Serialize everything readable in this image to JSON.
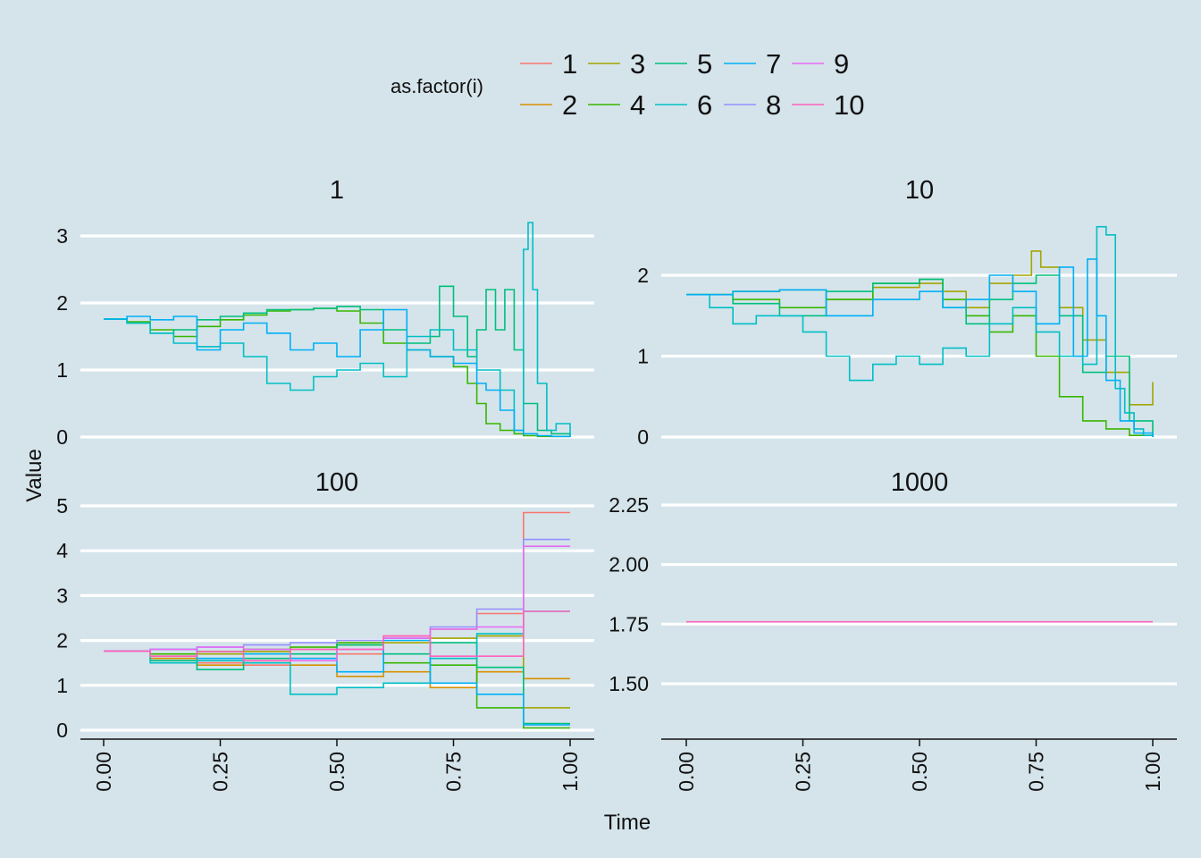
{
  "legend": {
    "title": "as.factor(i)",
    "entries": [
      {
        "label": "1",
        "color": "#F8766D"
      },
      {
        "label": "2",
        "color": "#D89000"
      },
      {
        "label": "3",
        "color": "#A3A500"
      },
      {
        "label": "4",
        "color": "#39B600"
      },
      {
        "label": "5",
        "color": "#00BF7D"
      },
      {
        "label": "6",
        "color": "#00BFC4"
      },
      {
        "label": "7",
        "color": "#00B0F6"
      },
      {
        "label": "8",
        "color": "#9590FF"
      },
      {
        "label": "9",
        "color": "#E76BF3"
      },
      {
        "label": "10",
        "color": "#FF62BC"
      }
    ]
  },
  "axes": {
    "xlabel": "Time",
    "ylabel": "Value"
  },
  "chart_data": [
    {
      "type": "line",
      "panel": "1",
      "xlim": [
        0,
        1
      ],
      "ylim": [
        0,
        3
      ],
      "xticks": [
        "0.00",
        "0.25",
        "0.50",
        "0.75",
        "1.00"
      ],
      "yticks": [
        "0",
        "1",
        "2",
        "3"
      ],
      "series": [
        {
          "name": "4",
          "color": "#39B600",
          "x": [
            0,
            0.05,
            0.1,
            0.15,
            0.2,
            0.25,
            0.3,
            0.35,
            0.4,
            0.45,
            0.5,
            0.55,
            0.6,
            0.65,
            0.7,
            0.75,
            0.78,
            0.8,
            0.82,
            0.85,
            0.88,
            0.9,
            0.93,
            0.96,
            1.0
          ],
          "y": [
            1.76,
            1.72,
            1.6,
            1.5,
            1.65,
            1.75,
            1.82,
            1.88,
            1.9,
            1.92,
            1.88,
            1.7,
            1.4,
            1.3,
            1.2,
            1.05,
            0.8,
            0.5,
            0.2,
            0.1,
            0.05,
            0.02,
            0.01,
            0.01,
            0
          ]
        },
        {
          "name": "5",
          "color": "#00BF7D",
          "x": [
            0,
            0.05,
            0.1,
            0.15,
            0.2,
            0.25,
            0.3,
            0.35,
            0.4,
            0.45,
            0.5,
            0.55,
            0.6,
            0.65,
            0.7,
            0.72,
            0.75,
            0.78,
            0.8,
            0.82,
            0.84,
            0.86,
            0.88,
            0.9,
            0.93,
            0.96,
            1.0
          ],
          "y": [
            1.76,
            1.7,
            1.55,
            1.6,
            1.75,
            1.8,
            1.85,
            1.9,
            1.9,
            1.92,
            1.95,
            1.9,
            1.6,
            1.4,
            1.5,
            2.25,
            1.8,
            1.2,
            1.6,
            2.2,
            1.6,
            2.2,
            1.3,
            0.5,
            0.1,
            0.05,
            0
          ]
        },
        {
          "name": "6",
          "color": "#00BFC4",
          "x": [
            0,
            0.05,
            0.1,
            0.15,
            0.2,
            0.25,
            0.3,
            0.35,
            0.4,
            0.45,
            0.5,
            0.55,
            0.6,
            0.65,
            0.7,
            0.75,
            0.8,
            0.85,
            0.88,
            0.9,
            0.91,
            0.92,
            0.93,
            0.95,
            0.97,
            1.0
          ],
          "y": [
            1.76,
            1.7,
            1.55,
            1.4,
            1.35,
            1.4,
            1.2,
            0.8,
            0.7,
            0.9,
            1.0,
            1.1,
            0.9,
            1.5,
            1.6,
            1.3,
            1.0,
            0.7,
            0.1,
            2.8,
            3.2,
            2.2,
            0.8,
            0.1,
            0.2,
            0
          ]
        },
        {
          "name": "7",
          "color": "#00B0F6",
          "x": [
            0,
            0.05,
            0.1,
            0.15,
            0.2,
            0.25,
            0.3,
            0.35,
            0.4,
            0.45,
            0.5,
            0.55,
            0.6,
            0.65,
            0.7,
            0.75,
            0.8,
            0.82,
            0.85,
            0.88,
            0.9,
            0.93,
            0.96,
            1.0
          ],
          "y": [
            1.76,
            1.8,
            1.75,
            1.8,
            1.3,
            1.6,
            1.7,
            1.55,
            1.3,
            1.4,
            1.2,
            1.6,
            1.9,
            1.3,
            1.2,
            1.1,
            0.8,
            0.7,
            0.4,
            0.1,
            0.05,
            0.02,
            0.01,
            0
          ]
        }
      ]
    },
    {
      "type": "line",
      "panel": "10",
      "xlim": [
        0,
        1
      ],
      "ylim": [
        0,
        2
      ],
      "xticks": [
        "0.00",
        "0.25",
        "0.50",
        "0.75",
        "1.00"
      ],
      "yticks": [
        "0",
        "1",
        "2"
      ],
      "series": [
        {
          "name": "3",
          "color": "#A3A500",
          "x": [
            0,
            0.1,
            0.2,
            0.3,
            0.4,
            0.5,
            0.55,
            0.6,
            0.65,
            0.7,
            0.74,
            0.76,
            0.8,
            0.85,
            0.9,
            0.95,
            1.0
          ],
          "y": [
            1.76,
            1.8,
            1.82,
            1.7,
            1.85,
            1.9,
            1.8,
            1.6,
            1.9,
            2.0,
            2.3,
            2.1,
            1.6,
            1.2,
            0.8,
            0.4,
            0.68
          ]
        },
        {
          "name": "4",
          "color": "#39B600",
          "x": [
            0,
            0.1,
            0.2,
            0.3,
            0.4,
            0.5,
            0.55,
            0.6,
            0.65,
            0.7,
            0.75,
            0.8,
            0.85,
            0.9,
            0.95,
            1.0
          ],
          "y": [
            1.76,
            1.7,
            1.6,
            1.7,
            1.9,
            1.95,
            1.7,
            1.5,
            1.3,
            1.5,
            1.0,
            0.5,
            0.2,
            0.1,
            0.02,
            0
          ]
        },
        {
          "name": "5",
          "color": "#00BF7D",
          "x": [
            0,
            0.1,
            0.2,
            0.3,
            0.4,
            0.5,
            0.55,
            0.6,
            0.65,
            0.7,
            0.75,
            0.8,
            0.85,
            0.9,
            0.95,
            1.0
          ],
          "y": [
            1.76,
            1.65,
            1.5,
            1.8,
            1.9,
            1.95,
            1.6,
            1.4,
            1.7,
            1.9,
            2.0,
            1.5,
            0.8,
            1.0,
            0.2,
            0
          ]
        },
        {
          "name": "6",
          "color": "#00BFC4",
          "x": [
            0,
            0.05,
            0.1,
            0.15,
            0.2,
            0.25,
            0.3,
            0.35,
            0.4,
            0.45,
            0.5,
            0.55,
            0.6,
            0.65,
            0.7,
            0.75,
            0.8,
            0.85,
            0.88,
            0.9,
            0.92,
            0.94,
            0.96,
            0.98,
            1.0
          ],
          "y": [
            1.76,
            1.6,
            1.4,
            1.5,
            1.5,
            1.3,
            1.0,
            0.7,
            0.9,
            1.0,
            0.9,
            1.1,
            1.0,
            1.4,
            1.6,
            1.3,
            1.0,
            0.9,
            2.6,
            2.5,
            0.6,
            0.3,
            0.1,
            0.02,
            0
          ]
        },
        {
          "name": "7",
          "color": "#00B0F6",
          "x": [
            0,
            0.1,
            0.2,
            0.3,
            0.4,
            0.5,
            0.55,
            0.6,
            0.65,
            0.7,
            0.75,
            0.8,
            0.83,
            0.86,
            0.88,
            0.9,
            0.93,
            0.96,
            1.0
          ],
          "y": [
            1.76,
            1.8,
            1.82,
            1.5,
            1.7,
            1.8,
            1.6,
            1.7,
            2.0,
            1.8,
            1.4,
            2.1,
            1.0,
            2.2,
            1.5,
            0.7,
            0.2,
            0.05,
            0
          ]
        }
      ]
    },
    {
      "type": "line",
      "panel": "100",
      "xlim": [
        0,
        1
      ],
      "ylim": [
        0,
        5
      ],
      "xticks": [
        "0.00",
        "0.25",
        "0.50",
        "0.75",
        "1.00"
      ],
      "yticks": [
        "0",
        "1",
        "2",
        "3",
        "4",
        "5"
      ],
      "series": [
        {
          "name": "1",
          "color": "#F8766D",
          "x": [
            0,
            0.1,
            0.2,
            0.3,
            0.4,
            0.5,
            0.6,
            0.7,
            0.8,
            0.9,
            1.0
          ],
          "y": [
            1.76,
            1.6,
            1.5,
            1.45,
            1.6,
            1.7,
            2.1,
            2.25,
            2.6,
            4.85,
            4.85
          ]
        },
        {
          "name": "2",
          "color": "#D89000",
          "x": [
            0,
            0.1,
            0.2,
            0.3,
            0.4,
            0.5,
            0.6,
            0.7,
            0.8,
            0.9,
            1.0
          ],
          "y": [
            1.76,
            1.6,
            1.45,
            1.5,
            1.45,
            1.2,
            1.3,
            0.95,
            1.3,
            1.15,
            1.15
          ]
        },
        {
          "name": "3",
          "color": "#A3A500",
          "x": [
            0,
            0.1,
            0.2,
            0.3,
            0.4,
            0.5,
            0.6,
            0.7,
            0.8,
            0.9,
            1.0
          ],
          "y": [
            1.76,
            1.65,
            1.7,
            1.75,
            1.8,
            1.9,
            1.95,
            2.05,
            2.1,
            0.5,
            0.5
          ]
        },
        {
          "name": "4",
          "color": "#39B600",
          "x": [
            0,
            0.1,
            0.2,
            0.3,
            0.4,
            0.5,
            0.6,
            0.7,
            0.8,
            0.9,
            1.0
          ],
          "y": [
            1.76,
            1.7,
            1.75,
            1.8,
            1.85,
            1.95,
            1.5,
            1.45,
            0.5,
            0.05,
            0.05
          ]
        },
        {
          "name": "5",
          "color": "#00BF7D",
          "x": [
            0,
            0.1,
            0.2,
            0.3,
            0.4,
            0.5,
            0.6,
            0.7,
            0.8,
            0.9,
            1.0
          ],
          "y": [
            1.76,
            1.55,
            1.35,
            1.6,
            1.7,
            1.9,
            1.7,
            1.95,
            1.4,
            0.15,
            0.15
          ]
        },
        {
          "name": "6",
          "color": "#00BFC4",
          "x": [
            0,
            0.1,
            0.2,
            0.3,
            0.4,
            0.5,
            0.6,
            0.7,
            0.8,
            0.9,
            1.0
          ],
          "y": [
            1.76,
            1.5,
            1.55,
            1.5,
            0.8,
            0.95,
            1.05,
            1.6,
            2.15,
            2.65,
            2.65
          ]
        },
        {
          "name": "7",
          "color": "#00B0F6",
          "x": [
            0,
            0.1,
            0.2,
            0.3,
            0.4,
            0.5,
            0.6,
            0.7,
            0.8,
            0.9,
            1.0
          ],
          "y": [
            1.76,
            1.8,
            1.6,
            1.7,
            1.6,
            1.3,
            2.0,
            1.05,
            0.8,
            0.12,
            0.12
          ]
        },
        {
          "name": "8",
          "color": "#9590FF",
          "x": [
            0,
            0.1,
            0.2,
            0.3,
            0.4,
            0.5,
            0.6,
            0.7,
            0.8,
            0.9,
            1.0
          ],
          "y": [
            1.76,
            1.8,
            1.85,
            1.9,
            1.95,
            2.0,
            2.05,
            2.3,
            2.7,
            4.25,
            4.25
          ]
        },
        {
          "name": "9",
          "color": "#E76BF3",
          "x": [
            0,
            0.1,
            0.2,
            0.3,
            0.4,
            0.5,
            0.6,
            0.7,
            0.8,
            0.9,
            1.0
          ],
          "y": [
            1.76,
            1.8,
            1.85,
            1.8,
            1.55,
            1.8,
            2.05,
            2.25,
            2.3,
            4.1,
            4.1
          ]
        },
        {
          "name": "10",
          "color": "#FF62BC",
          "x": [
            0,
            0.1,
            0.2,
            0.3,
            0.4,
            0.5,
            0.6,
            0.7,
            0.8,
            0.9,
            1.0
          ],
          "y": [
            1.76,
            1.65,
            1.75,
            1.55,
            1.8,
            1.8,
            2.1,
            1.65,
            1.65,
            2.65,
            2.65
          ]
        }
      ]
    },
    {
      "type": "line",
      "panel": "1000",
      "xlim": [
        0,
        1
      ],
      "ylim": [
        1.3,
        2.3
      ],
      "xticks": [
        "0.00",
        "0.25",
        "0.50",
        "0.75",
        "1.00"
      ],
      "yticks": [
        "1.50",
        "1.75",
        "2.00",
        "2.25"
      ],
      "yvalues": [
        1.5,
        1.75,
        2.0,
        2.25
      ],
      "series": [
        {
          "name": "10",
          "color": "#FF62BC",
          "x": [
            0,
            1.0
          ],
          "y": [
            1.76,
            1.76
          ]
        }
      ]
    }
  ]
}
